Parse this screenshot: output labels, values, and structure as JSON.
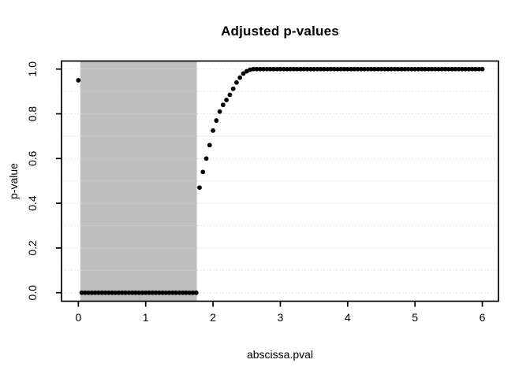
{
  "chart_data": {
    "type": "scatter",
    "title": "Adjusted p-values",
    "xlabel": "abscissa.pval",
    "ylabel": "p-value",
    "x_ticks": [
      0,
      1,
      2,
      3,
      4,
      5,
      6
    ],
    "x_tick_labels": [
      "0",
      "1",
      "2",
      "3",
      "4",
      "5",
      "6"
    ],
    "y_tick_values": [
      0,
      0.2,
      0.4,
      0.6,
      0.8,
      1.0
    ],
    "y_tick_labels": [
      "0.0",
      "0.2",
      "0.4",
      "0.6",
      "0.8",
      "1.0"
    ],
    "xlim": [
      -0.25,
      6.24
    ],
    "ylim": [
      -0.038,
      1.036
    ],
    "grid": {
      "style": "dotted",
      "color": "#d6d6d6",
      "y_lines": [
        0,
        0.1,
        0.2,
        0.3,
        0.4,
        0.5,
        0.6,
        0.7,
        0.8,
        0.9,
        1.0
      ]
    },
    "shaded_region": {
      "x0": 0.03,
      "x1": 1.76,
      "color": "#bebebe"
    },
    "point_color": "#000000",
    "point_radius": 2.9,
    "axis_color": "#000000",
    "background_color": "#ffffff",
    "legend": null,
    "points": [
      [
        0,
        0.95
      ],
      [
        0.05,
        0
      ],
      [
        0.1,
        0
      ],
      [
        0.15,
        0
      ],
      [
        0.2,
        0
      ],
      [
        0.25,
        0
      ],
      [
        0.3,
        0
      ],
      [
        0.35,
        0
      ],
      [
        0.4,
        0
      ],
      [
        0.45,
        0
      ],
      [
        0.5,
        0
      ],
      [
        0.55,
        0
      ],
      [
        0.6,
        0
      ],
      [
        0.65,
        0
      ],
      [
        0.7,
        0
      ],
      [
        0.75,
        0
      ],
      [
        0.8,
        0
      ],
      [
        0.85,
        0
      ],
      [
        0.9,
        0
      ],
      [
        0.95,
        0
      ],
      [
        1,
        0
      ],
      [
        1.05,
        0
      ],
      [
        1.1,
        0
      ],
      [
        1.15,
        0
      ],
      [
        1.2,
        0
      ],
      [
        1.25,
        0
      ],
      [
        1.3,
        0
      ],
      [
        1.35,
        0
      ],
      [
        1.4,
        0
      ],
      [
        1.45,
        0
      ],
      [
        1.5,
        0
      ],
      [
        1.55,
        0
      ],
      [
        1.6,
        0
      ],
      [
        1.65,
        0
      ],
      [
        1.7,
        0
      ],
      [
        1.75,
        0
      ],
      [
        1.8,
        0.47
      ],
      [
        1.85,
        0.54
      ],
      [
        1.9,
        0.6
      ],
      [
        1.95,
        0.66
      ],
      [
        2,
        0.725
      ],
      [
        2.05,
        0.77
      ],
      [
        2.1,
        0.81
      ],
      [
        2.15,
        0.84
      ],
      [
        2.2,
        0.862
      ],
      [
        2.25,
        0.885
      ],
      [
        2.3,
        0.912
      ],
      [
        2.35,
        0.94
      ],
      [
        2.4,
        0.962
      ],
      [
        2.45,
        0.98
      ],
      [
        2.5,
        0.99
      ],
      [
        2.55,
        0.997
      ],
      [
        2.6,
        1
      ],
      [
        2.65,
        1
      ],
      [
        2.7,
        1
      ],
      [
        2.75,
        1
      ],
      [
        2.8,
        1
      ],
      [
        2.85,
        1
      ],
      [
        2.9,
        1
      ],
      [
        2.95,
        1
      ],
      [
        3,
        1
      ],
      [
        3.05,
        1
      ],
      [
        3.1,
        1
      ],
      [
        3.15,
        1
      ],
      [
        3.2,
        1
      ],
      [
        3.25,
        1
      ],
      [
        3.3,
        1
      ],
      [
        3.35,
        1
      ],
      [
        3.4,
        1
      ],
      [
        3.45,
        1
      ],
      [
        3.5,
        1
      ],
      [
        3.55,
        1
      ],
      [
        3.6,
        1
      ],
      [
        3.65,
        1
      ],
      [
        3.7,
        1
      ],
      [
        3.75,
        1
      ],
      [
        3.8,
        1
      ],
      [
        3.85,
        1
      ],
      [
        3.9,
        1
      ],
      [
        3.95,
        1
      ],
      [
        4,
        1
      ],
      [
        4.05,
        1
      ],
      [
        4.1,
        1
      ],
      [
        4.15,
        1
      ],
      [
        4.2,
        1
      ],
      [
        4.25,
        1
      ],
      [
        4.3,
        1
      ],
      [
        4.35,
        1
      ],
      [
        4.4,
        1
      ],
      [
        4.45,
        1
      ],
      [
        4.5,
        1
      ],
      [
        4.55,
        1
      ],
      [
        4.6,
        1
      ],
      [
        4.65,
        1
      ],
      [
        4.7,
        1
      ],
      [
        4.75,
        1
      ],
      [
        4.8,
        1
      ],
      [
        4.85,
        1
      ],
      [
        4.9,
        1
      ],
      [
        4.95,
        1
      ],
      [
        5,
        1
      ],
      [
        5.05,
        1
      ],
      [
        5.1,
        1
      ],
      [
        5.15,
        1
      ],
      [
        5.2,
        1
      ],
      [
        5.25,
        1
      ],
      [
        5.3,
        1
      ],
      [
        5.35,
        1
      ],
      [
        5.4,
        1
      ],
      [
        5.45,
        1
      ],
      [
        5.5,
        1
      ],
      [
        5.55,
        1
      ],
      [
        5.6,
        1
      ],
      [
        5.65,
        1
      ],
      [
        5.7,
        1
      ],
      [
        5.75,
        1
      ],
      [
        5.8,
        1
      ],
      [
        5.85,
        1
      ],
      [
        5.9,
        1
      ],
      [
        5.95,
        1
      ],
      [
        6,
        1
      ]
    ]
  }
}
